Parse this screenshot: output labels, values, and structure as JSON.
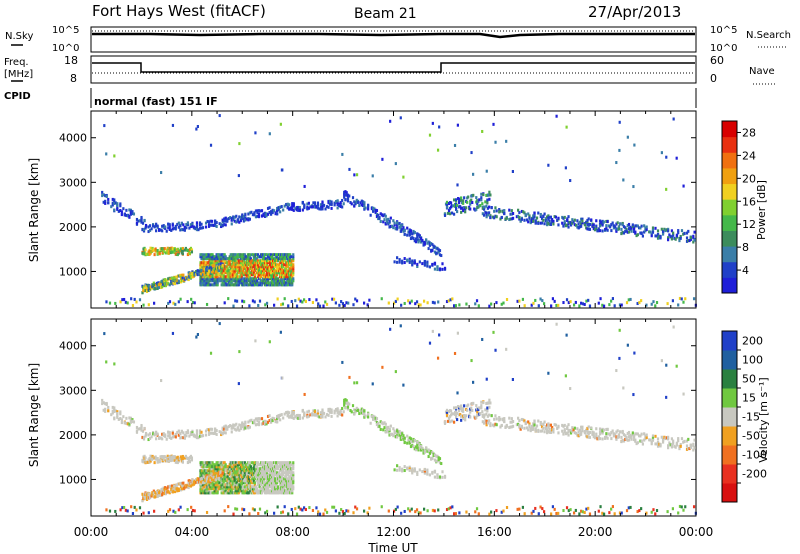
{
  "header": {
    "station": "Fort Hays West (fitACF)",
    "beam": "Beam 21",
    "date": "27/Apr/2013"
  },
  "strip_labels": {
    "nsky": "N.Sky",
    "nsearch": "N.Search",
    "freq": "Freq.",
    "freq_unit": "[MHz]",
    "cpid": "CPID",
    "nave": "Nave",
    "noise_ticks_left": [
      "10^5",
      "10^0"
    ],
    "noise_ticks_right": [
      "10^5",
      "10^0"
    ],
    "freq_ticks": [
      "18",
      "8"
    ],
    "nave_ticks": [
      "60",
      "0"
    ]
  },
  "cpid_text": "normal (fast) 151 IF",
  "colors": {
    "power_scale": [
      "#1f1fd8",
      "#2040c8",
      "#3a7ea8",
      "#3c8c5c",
      "#44b84a",
      "#80d030",
      "#f0d020",
      "#f0a010",
      "#f07010",
      "#e83010",
      "#d80000"
    ],
    "velocity_scale": [
      "#2040c8",
      "#2060a0",
      "#2a8040",
      "#70c840",
      "#c8c8c0",
      "#f0a020",
      "#f07020",
      "#e83020",
      "#d81010"
    ]
  },
  "chart_data": [
    {
      "type": "heatmap",
      "name": "power",
      "ylabel": "Slant Range [km]",
      "ylim": [
        180,
        4600
      ],
      "xlim": [
        0,
        24
      ],
      "ytick_labels": [
        "1000",
        "2000",
        "3000",
        "4000"
      ],
      "colorbar_label": "Power [dB]",
      "colorbar_ticks": [
        "4",
        "8",
        "12",
        "16",
        "20",
        "24",
        "28"
      ],
      "colorbar_range": [
        0,
        30
      ]
    },
    {
      "type": "heatmap",
      "name": "velocity",
      "ylabel": "Slant Range [km]",
      "ylim": [
        180,
        4600
      ],
      "xlim": [
        0,
        24
      ],
      "ytick_labels": [
        "1000",
        "2000",
        "3000",
        "4000"
      ],
      "xtick_labels": [
        "00:00",
        "04:00",
        "08:00",
        "12:00",
        "16:00",
        "20:00",
        "00:00"
      ],
      "xlabel": "Time UT",
      "colorbar_label": "Velocity [m s⁻¹]",
      "colorbar_ticks": [
        "200",
        "100",
        "50",
        "15",
        "-15",
        "-50",
        "-100",
        "-200"
      ]
    }
  ]
}
